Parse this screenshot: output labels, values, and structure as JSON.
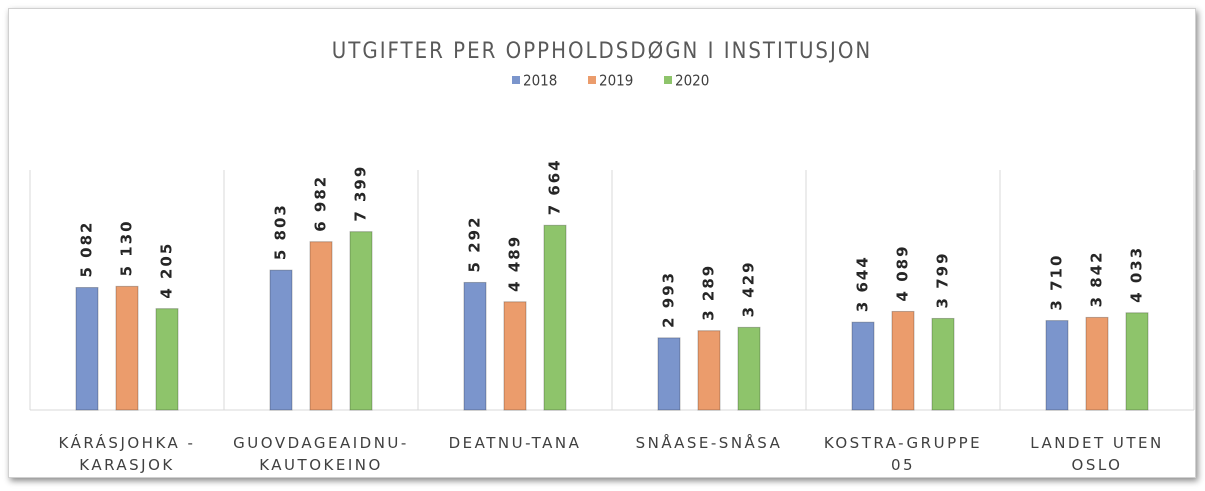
{
  "chart_data": {
    "type": "bar",
    "title": "UTGIFTER PER OPPHOLDSDØGN I INSTITUSJON",
    "categories": [
      "KÁRÁSJOHKA - KARASJOK",
      "GUOVDAGEAIDNU-KAUTOKEINO",
      "DEATNU-TANA",
      "SNÅASE-SNÅSA",
      "KOSTRA-GRUPPE 05",
      "LANDET UTEN OSLO"
    ],
    "series": [
      {
        "name": "2018",
        "color": "#7b95cc",
        "values": [
          5082,
          5803,
          5292,
          2993,
          3644,
          3710
        ],
        "value_labels": [
          "5 082",
          "5 803",
          "5 292",
          "2 993",
          "3 644",
          "3 710"
        ]
      },
      {
        "name": "2019",
        "color": "#eb9c6c",
        "values": [
          5130,
          6982,
          4489,
          3289,
          4089,
          3842
        ],
        "value_labels": [
          "5 130",
          "6 982",
          "4 489",
          "3 289",
          "4 089",
          "3 842"
        ]
      },
      {
        "name": "2020",
        "color": "#8ec46b",
        "values": [
          4205,
          7399,
          7664,
          3429,
          3799,
          4033
        ],
        "value_labels": [
          "4 205",
          "7 399",
          "7 664",
          "3 429",
          "3 799",
          "4 033"
        ]
      }
    ],
    "ylim": [
      0,
      10000
    ]
  }
}
